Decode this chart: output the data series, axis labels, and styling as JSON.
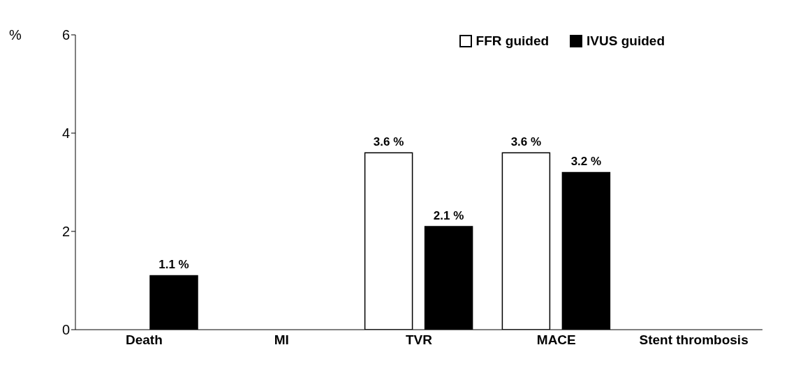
{
  "chart_data": {
    "type": "bar",
    "ylabel": "%",
    "categories": [
      "Death",
      "MI",
      "TVR",
      "MACE",
      "Stent thrombosis"
    ],
    "series": [
      {
        "name": "FFR guided",
        "color": "#ffffff",
        "values": [
          0,
          0,
          3.6,
          3.6,
          0
        ],
        "value_labels": [
          null,
          null,
          "3.6 %",
          "3.6 %",
          null
        ]
      },
      {
        "name": "IVUS guided",
        "color": "#000000",
        "values": [
          1.1,
          0,
          2.1,
          3.2,
          0
        ],
        "value_labels": [
          "1.1 %",
          null,
          "2.1 %",
          "3.2 %",
          null
        ]
      }
    ],
    "ylim": [
      0,
      6
    ],
    "yticks": [
      0,
      2,
      4,
      6
    ],
    "grid": false,
    "legend": "top right"
  }
}
